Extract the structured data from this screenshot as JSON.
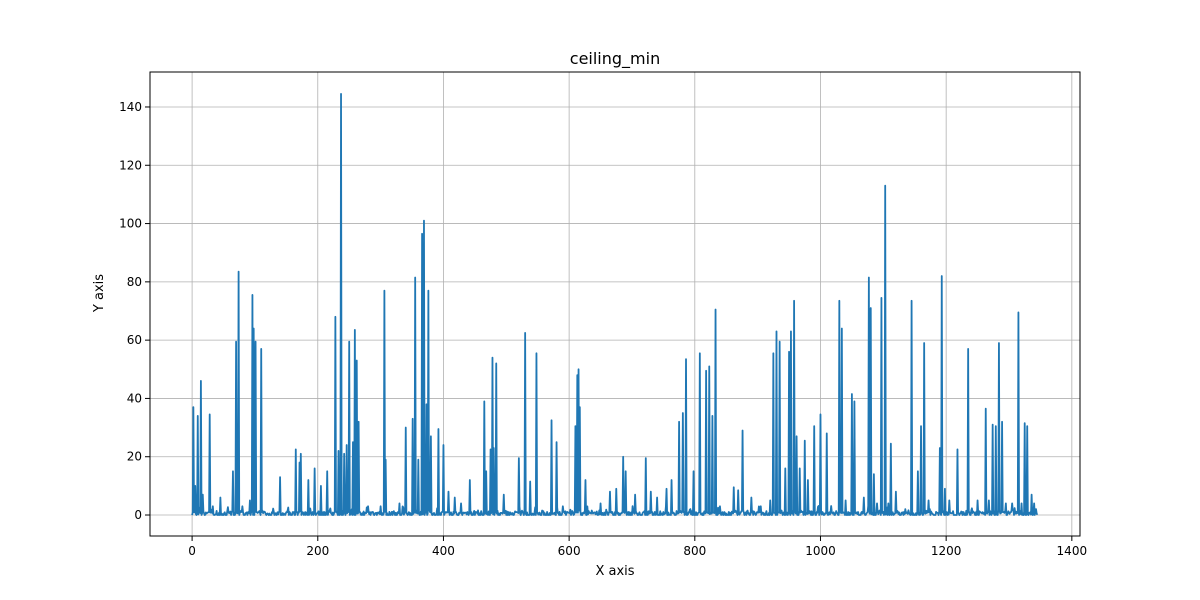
{
  "chart_data": {
    "type": "line",
    "title": "ceiling_min",
    "xlabel": "X axis",
    "ylabel": "Y axis",
    "xlim": [
      -67,
      1413
    ],
    "ylim": [
      -7.2,
      152
    ],
    "xticks": [
      0,
      200,
      400,
      600,
      800,
      1000,
      1200,
      1400
    ],
    "yticks": [
      0,
      20,
      40,
      60,
      80,
      100,
      120,
      140
    ],
    "grid": true,
    "color": "#1f77b4",
    "x_max": 1345,
    "baseline": 0.8,
    "spikes": [
      [
        2,
        37
      ],
      [
        5,
        10
      ],
      [
        9,
        34
      ],
      [
        14,
        46
      ],
      [
        17,
        7
      ],
      [
        28,
        34.5
      ],
      [
        33,
        3
      ],
      [
        45,
        6
      ],
      [
        65,
        15
      ],
      [
        70,
        59.5
      ],
      [
        74,
        83.5
      ],
      [
        80,
        3
      ],
      [
        92,
        5
      ],
      [
        96,
        75.5
      ],
      [
        98,
        64
      ],
      [
        101,
        59.5
      ],
      [
        110,
        57
      ],
      [
        140,
        13
      ],
      [
        165,
        22.5
      ],
      [
        171,
        18
      ],
      [
        173,
        21
      ],
      [
        185,
        12
      ],
      [
        195,
        16
      ],
      [
        205,
        10
      ],
      [
        215,
        15
      ],
      [
        228,
        68
      ],
      [
        233,
        22
      ],
      [
        237,
        144.5
      ],
      [
        242,
        21
      ],
      [
        246,
        24
      ],
      [
        250,
        59.5
      ],
      [
        256,
        25
      ],
      [
        259,
        63.5
      ],
      [
        262,
        53
      ],
      [
        265,
        32
      ],
      [
        280,
        3
      ],
      [
        300,
        3
      ],
      [
        306,
        77
      ],
      [
        308,
        19
      ],
      [
        330,
        4
      ],
      [
        340,
        30
      ],
      [
        351,
        33
      ],
      [
        355,
        81.5
      ],
      [
        360,
        19
      ],
      [
        366,
        96.5
      ],
      [
        369,
        101
      ],
      [
        373,
        38
      ],
      [
        376,
        77
      ],
      [
        380,
        27
      ],
      [
        392,
        29.5
      ],
      [
        400,
        24
      ],
      [
        408,
        8
      ],
      [
        418,
        6
      ],
      [
        428,
        4
      ],
      [
        442,
        12
      ],
      [
        465,
        39
      ],
      [
        468,
        15
      ],
      [
        475,
        22.5
      ],
      [
        478,
        54
      ],
      [
        480,
        23
      ],
      [
        484,
        52
      ],
      [
        496,
        7
      ],
      [
        520,
        19.5
      ],
      [
        530,
        62.5
      ],
      [
        538,
        11.5
      ],
      [
        548,
        55.5
      ],
      [
        572,
        32.5
      ],
      [
        580,
        25
      ],
      [
        590,
        3
      ],
      [
        610,
        30.5
      ],
      [
        613,
        48
      ],
      [
        615,
        50
      ],
      [
        617,
        37
      ],
      [
        626,
        12
      ],
      [
        650,
        4
      ],
      [
        665,
        8
      ],
      [
        675,
        9
      ],
      [
        686,
        20
      ],
      [
        690,
        15
      ],
      [
        705,
        7
      ],
      [
        722,
        19.5
      ],
      [
        730,
        8
      ],
      [
        740,
        6
      ],
      [
        755,
        9
      ],
      [
        763,
        12
      ],
      [
        775,
        32
      ],
      [
        781,
        35
      ],
      [
        786,
        53.5
      ],
      [
        798,
        15
      ],
      [
        808,
        55.5
      ],
      [
        818,
        49.5
      ],
      [
        823,
        51
      ],
      [
        828,
        34
      ],
      [
        833,
        70.5
      ],
      [
        840,
        3
      ],
      [
        862,
        9.5
      ],
      [
        869,
        8.5
      ],
      [
        876,
        29
      ],
      [
        890,
        6
      ],
      [
        905,
        3
      ],
      [
        920,
        5
      ],
      [
        925,
        55.5
      ],
      [
        930,
        63
      ],
      [
        935,
        59.5
      ],
      [
        944,
        16
      ],
      [
        950,
        56
      ],
      [
        953,
        63
      ],
      [
        958,
        73.5
      ],
      [
        962,
        27
      ],
      [
        967,
        16
      ],
      [
        975,
        25.5
      ],
      [
        980,
        12
      ],
      [
        990,
        30.5
      ],
      [
        1000,
        34.5
      ],
      [
        1010,
        28
      ],
      [
        1030,
        73.5
      ],
      [
        1034,
        64
      ],
      [
        1040,
        5
      ],
      [
        1050,
        41.5
      ],
      [
        1054,
        39
      ],
      [
        1069,
        6
      ],
      [
        1077,
        81.5
      ],
      [
        1080,
        71
      ],
      [
        1085,
        14
      ],
      [
        1090,
        4
      ],
      [
        1097,
        74.5
      ],
      [
        1103,
        113
      ],
      [
        1108,
        4
      ],
      [
        1112,
        24.5
      ],
      [
        1120,
        8
      ],
      [
        1135,
        2
      ],
      [
        1145,
        73.5
      ],
      [
        1155,
        15
      ],
      [
        1160,
        30.5
      ],
      [
        1165,
        59
      ],
      [
        1172,
        5
      ],
      [
        1190,
        23
      ],
      [
        1193,
        82
      ],
      [
        1198,
        9
      ],
      [
        1205,
        5
      ],
      [
        1218,
        22.5
      ],
      [
        1235,
        57
      ],
      [
        1250,
        5
      ],
      [
        1263,
        36.5
      ],
      [
        1268,
        5
      ],
      [
        1274,
        31
      ],
      [
        1279,
        30.5
      ],
      [
        1284,
        59
      ],
      [
        1289,
        32
      ],
      [
        1295,
        4
      ],
      [
        1305,
        4
      ],
      [
        1315,
        69.5
      ],
      [
        1320,
        4
      ],
      [
        1325,
        31.5
      ],
      [
        1329,
        30.5
      ],
      [
        1336,
        7
      ],
      [
        1340,
        4
      ]
    ]
  }
}
